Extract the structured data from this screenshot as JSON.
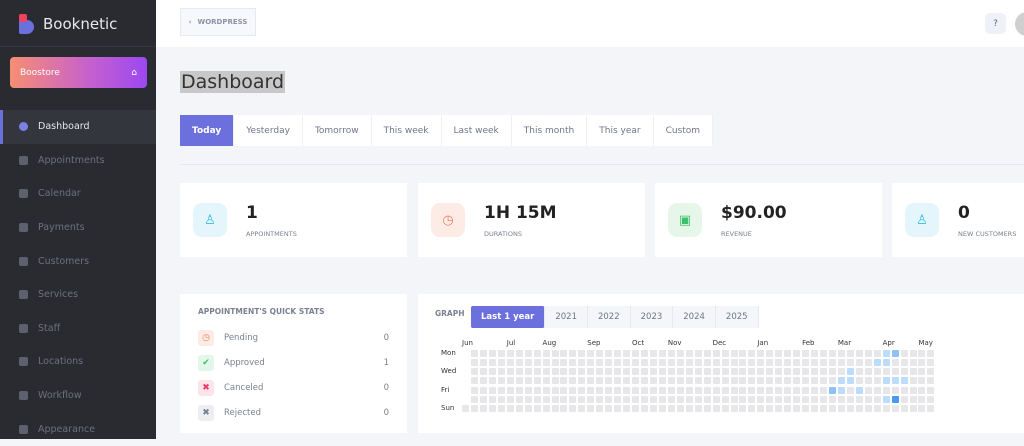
{
  "app": {
    "name": "Booknetic",
    "boostore": "Boostore"
  },
  "sidebar": {
    "items": [
      {
        "label": "Dashboard",
        "active": true
      },
      {
        "label": "Appointments"
      },
      {
        "label": "Calendar"
      },
      {
        "label": "Payments"
      },
      {
        "label": "Customers"
      },
      {
        "label": "Services"
      },
      {
        "label": "Staff"
      },
      {
        "label": "Locations"
      },
      {
        "label": "Workflow"
      },
      {
        "label": "Appearance"
      }
    ]
  },
  "topbar": {
    "back_label": "WORDPRESS",
    "help_icon": "help-icon"
  },
  "page": {
    "title": "Dashboard"
  },
  "range_tabs": [
    "Today",
    "Yesterday",
    "Tomorrow",
    "This week",
    "Last week",
    "This month",
    "This year",
    "Custom"
  ],
  "stats": [
    {
      "value": "1",
      "label": "APPOINTMENTS",
      "icon": "user-icon",
      "bg": "#e4f6fb",
      "color": "#33c0e0"
    },
    {
      "value": "1H 15M",
      "label": "DURATIONS",
      "icon": "clock-icon",
      "bg": "#fdece6",
      "color": "#f2805c"
    },
    {
      "value": "$90.00",
      "label": "REVENUE",
      "icon": "wallet-icon",
      "bg": "#e6f7ea",
      "color": "#3cc06a"
    },
    {
      "value": "0",
      "label": "NEW CUSTOMERS",
      "icon": "user-icon",
      "bg": "#e4f6fb",
      "color": "#33c0e0"
    }
  ],
  "quick_stats": {
    "title": "APPOINTMENT'S QUICK STATS",
    "rows": [
      {
        "label": "Pending",
        "value": "0",
        "icon": "clock-icon",
        "bg": "#fdece6",
        "color": "#f2805c",
        "glyph": "◷"
      },
      {
        "label": "Approved",
        "value": "1",
        "icon": "check-icon",
        "bg": "#e3f7e8",
        "color": "#3cc06a",
        "glyph": "✔"
      },
      {
        "label": "Canceled",
        "value": "0",
        "icon": "x-icon",
        "bg": "#fde4ea",
        "color": "#f0396a",
        "glyph": "✖"
      },
      {
        "label": "Rejected",
        "value": "0",
        "icon": "x-icon",
        "bg": "#eceef2",
        "color": "#7a8091",
        "glyph": "✖"
      }
    ]
  },
  "graph": {
    "label": "GRAPH",
    "tabs": [
      "Last 1 year",
      "2021",
      "2022",
      "2023",
      "2024",
      "2025"
    ],
    "active_tab": "Last 1 year"
  },
  "chart_data": {
    "type": "heatmap",
    "weeks": 53,
    "months": [
      {
        "label": "Jun",
        "week": 0
      },
      {
        "label": "Jul",
        "week": 5
      },
      {
        "label": "Aug",
        "week": 9
      },
      {
        "label": "Sep",
        "week": 14
      },
      {
        "label": "Oct",
        "week": 19
      },
      {
        "label": "Nov",
        "week": 23
      },
      {
        "label": "Dec",
        "week": 28
      },
      {
        "label": "Jan",
        "week": 33
      },
      {
        "label": "Feb",
        "week": 38
      },
      {
        "label": "Mar",
        "week": 42
      },
      {
        "label": "Apr",
        "week": 47
      },
      {
        "label": "May",
        "week": 51
      }
    ],
    "day_labels": [
      {
        "label": "Mon",
        "day": 0
      },
      {
        "label": "Wed",
        "day": 2
      },
      {
        "label": "Fri",
        "day": 4
      },
      {
        "label": "Sun",
        "day": 6
      }
    ],
    "levels": {
      "0": "#e7e7e9",
      "1": "#bcdcfb",
      "2": "#8fc1f7",
      "3": "#4a98f1"
    },
    "active": [
      [
        47,
        0,
        1
      ],
      [
        48,
        0,
        2
      ],
      [
        46,
        1,
        1
      ],
      [
        47,
        1,
        1
      ],
      [
        43,
        2,
        1
      ],
      [
        42,
        3,
        1
      ],
      [
        43,
        3,
        1
      ],
      [
        47,
        3,
        1
      ],
      [
        48,
        3,
        1
      ],
      [
        49,
        3,
        1
      ],
      [
        41,
        4,
        2
      ],
      [
        42,
        4,
        1
      ],
      [
        44,
        4,
        1
      ],
      [
        47,
        5,
        1
      ],
      [
        48,
        5,
        3
      ]
    ]
  }
}
